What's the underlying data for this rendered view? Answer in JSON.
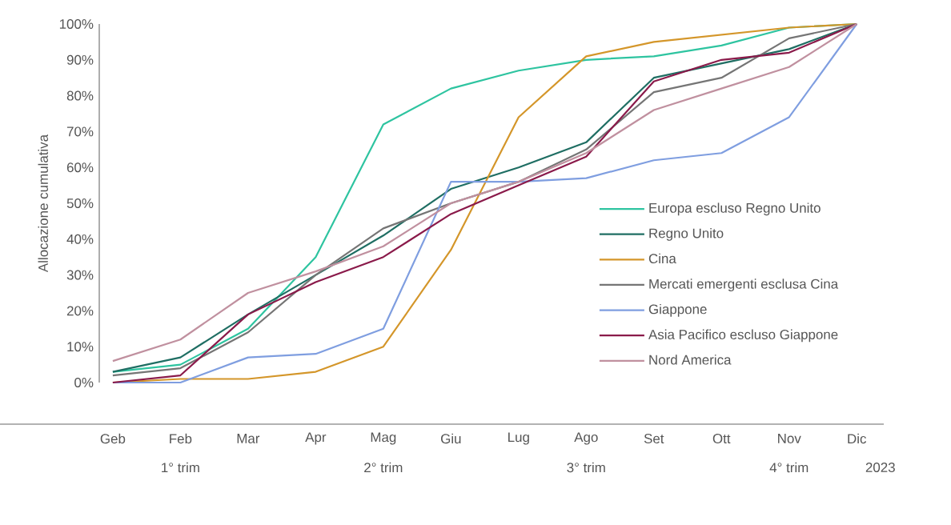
{
  "chart_data": {
    "type": "line",
    "ylabel": "Allocazione cumulativa",
    "categories": [
      "Geb",
      "Feb",
      "Mar",
      "Apr",
      "Mag",
      "Giu",
      "Lug",
      "Ago",
      "Set",
      "Ott",
      "Nov",
      "Dic"
    ],
    "ylim": [
      0,
      100
    ],
    "yticks": [
      {
        "value": 0,
        "label": "0%"
      },
      {
        "value": 10,
        "label": "10%"
      },
      {
        "value": 20,
        "label": "20%"
      },
      {
        "value": 30,
        "label": "30%"
      },
      {
        "value": 40,
        "label": "40%"
      },
      {
        "value": 50,
        "label": "50%"
      },
      {
        "value": 60,
        "label": "60%"
      },
      {
        "value": 70,
        "label": "70%"
      },
      {
        "value": 80,
        "label": "80%"
      },
      {
        "value": 90,
        "label": "90%"
      },
      {
        "value": 100,
        "label": "100%"
      }
    ],
    "series": [
      {
        "name": "Europa escluso Regno Unito",
        "color": "#2ec4a0",
        "values": [
          3,
          5,
          15,
          35,
          72,
          82,
          87,
          90,
          91,
          94,
          99,
          100
        ]
      },
      {
        "name": "Regno Unito",
        "color": "#1f6e63",
        "values": [
          3,
          7,
          19,
          30,
          41,
          54,
          60,
          67,
          85,
          89,
          93,
          100
        ]
      },
      {
        "name": "Cina",
        "color": "#d4962a",
        "values": [
          0,
          1,
          1,
          3,
          10,
          37,
          74,
          91,
          95,
          97,
          99,
          100
        ]
      },
      {
        "name": "Mercati emergenti esclusa Cina",
        "color": "#757575",
        "values": [
          2,
          4,
          14,
          30,
          43,
          50,
          56,
          65,
          81,
          85,
          96,
          100
        ]
      },
      {
        "name": "Giappone",
        "color": "#7f9ee0",
        "values": [
          0,
          0,
          7,
          8,
          15,
          56,
          56,
          57,
          62,
          64,
          74,
          100
        ]
      },
      {
        "name": "Asia Pacifico escluso Giappone",
        "color": "#8a1a4a",
        "values": [
          0,
          2,
          19,
          28,
          35,
          47,
          55,
          63,
          84,
          90,
          92,
          100
        ]
      },
      {
        "name": "Nord America",
        "color": "#c0909f",
        "values": [
          6,
          12,
          25,
          31,
          38,
          50,
          56,
          64,
          76,
          82,
          88,
          100
        ]
      }
    ],
    "annotations": [
      "1° trim",
      "2° trim",
      "3° trim",
      "4° trim",
      "2023"
    ],
    "legend": "bottom right",
    "grid": false,
    "marker": "none",
    "line_style": "solid"
  }
}
